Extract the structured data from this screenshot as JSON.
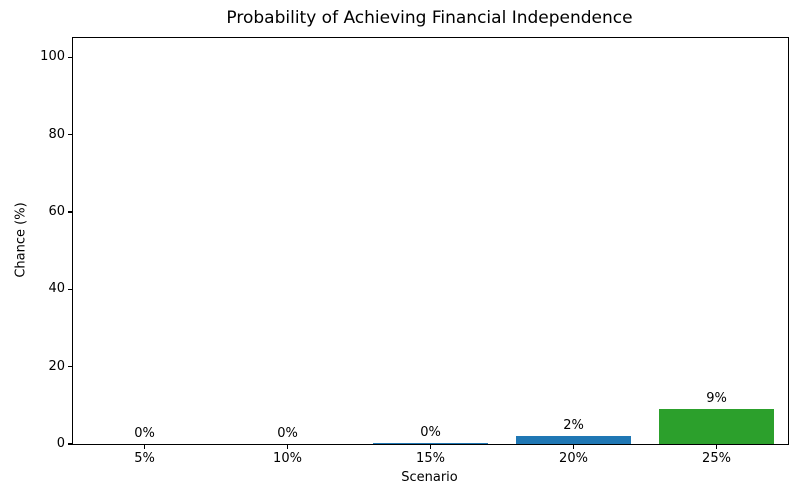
{
  "chart_data": {
    "type": "bar",
    "title": "Probability of Achieving Financial Independence",
    "xlabel": "Scenario",
    "ylabel": "Chance (%)",
    "categories": [
      "5%",
      "10%",
      "15%",
      "20%",
      "25%"
    ],
    "values": [
      0,
      0,
      0.3,
      2,
      9
    ],
    "bar_labels": [
      "0%",
      "0%",
      "0%",
      "2%",
      "9%"
    ],
    "bar_colors": [
      "#1f77b4",
      "#1f77b4",
      "#1f77b4",
      "#1f77b4",
      "#2ca02c"
    ],
    "yticks": [
      0,
      20,
      40,
      60,
      80,
      100
    ],
    "ylim": [
      0,
      105
    ],
    "grid": false,
    "legend": "none",
    "colors": {
      "bar_blue": "#1f77b4",
      "bar_green": "#2ca02c",
      "axis": "#000000",
      "background": "#ffffff"
    }
  }
}
